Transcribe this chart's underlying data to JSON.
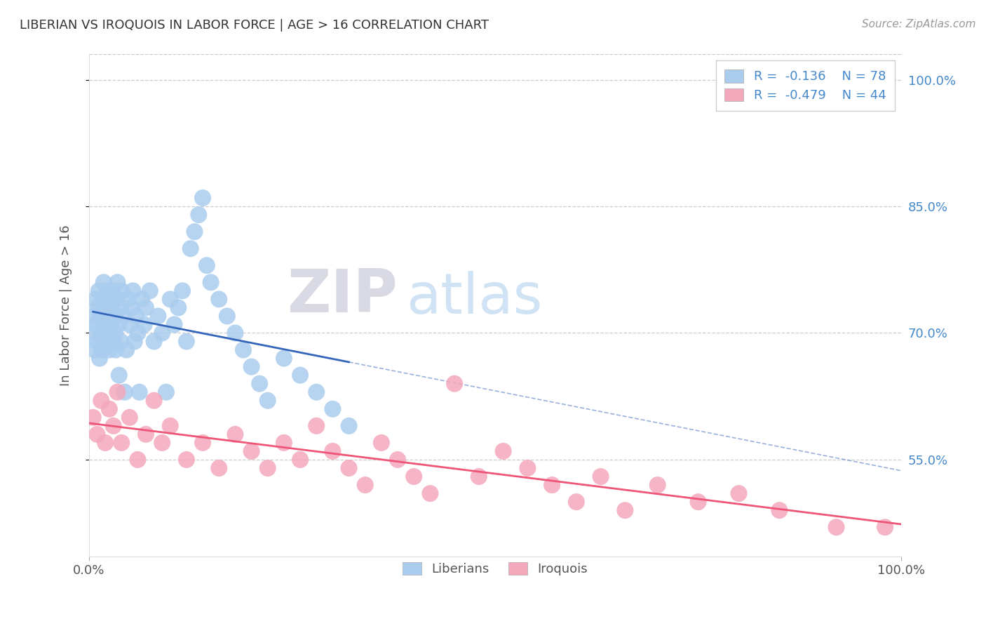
{
  "title": "LIBERIAN VS IROQUOIS IN LABOR FORCE | AGE > 16 CORRELATION CHART",
  "source_text": "Source: ZipAtlas.com",
  "ylabel": "In Labor Force | Age > 16",
  "xlim": [
    0.0,
    1.0
  ],
  "ylim": [
    0.435,
    1.03
  ],
  "right_ytick_labels": [
    "55.0%",
    "70.0%",
    "85.0%",
    "100.0%"
  ],
  "right_ytick_values": [
    0.55,
    0.7,
    0.85,
    1.0
  ],
  "liberian_color": "#aaccee",
  "iroquois_color": "#f4a8bc",
  "liberian_line_color": "#3366bb",
  "iroquois_line_color": "#ee5577",
  "dashed_line_color": "#aabbdd",
  "legend_r_liberian": "R =  -0.136",
  "legend_n_liberian": "N = 78",
  "legend_r_iroquois": "R =  -0.479",
  "legend_n_iroquois": "N = 44",
  "background_color": "#ffffff",
  "grid_color": "#cccccc",
  "liberian_N": 78,
  "iroquois_N": 44,
  "liberian_x_pts": [
    0.005,
    0.006,
    0.007,
    0.008,
    0.009,
    0.01,
    0.011,
    0.012,
    0.013,
    0.014,
    0.015,
    0.016,
    0.017,
    0.018,
    0.019,
    0.02,
    0.021,
    0.022,
    0.023,
    0.024,
    0.025,
    0.026,
    0.027,
    0.028,
    0.029,
    0.03,
    0.031,
    0.032,
    0.033,
    0.034,
    0.035,
    0.036,
    0.037,
    0.038,
    0.039,
    0.04,
    0.042,
    0.044,
    0.046,
    0.048,
    0.05,
    0.052,
    0.054,
    0.056,
    0.058,
    0.06,
    0.062,
    0.065,
    0.068,
    0.07,
    0.075,
    0.08,
    0.085,
    0.09,
    0.095,
    0.1,
    0.105,
    0.11,
    0.115,
    0.12,
    0.125,
    0.13,
    0.135,
    0.14,
    0.145,
    0.15,
    0.16,
    0.17,
    0.18,
    0.19,
    0.2,
    0.21,
    0.22,
    0.24,
    0.26,
    0.28,
    0.3,
    0.32
  ],
  "liberian_y_pts": [
    0.7,
    0.72,
    0.68,
    0.74,
    0.71,
    0.69,
    0.73,
    0.75,
    0.67,
    0.72,
    0.7,
    0.68,
    0.74,
    0.76,
    0.71,
    0.73,
    0.69,
    0.75,
    0.72,
    0.7,
    0.68,
    0.74,
    0.71,
    0.73,
    0.75,
    0.69,
    0.72,
    0.7,
    0.68,
    0.74,
    0.76,
    0.71,
    0.65,
    0.73,
    0.69,
    0.75,
    0.72,
    0.63,
    0.68,
    0.74,
    0.71,
    0.73,
    0.75,
    0.69,
    0.72,
    0.7,
    0.63,
    0.74,
    0.71,
    0.73,
    0.75,
    0.69,
    0.72,
    0.7,
    0.63,
    0.74,
    0.71,
    0.73,
    0.75,
    0.69,
    0.8,
    0.82,
    0.84,
    0.86,
    0.78,
    0.76,
    0.74,
    0.72,
    0.7,
    0.68,
    0.66,
    0.64,
    0.62,
    0.67,
    0.65,
    0.63,
    0.61,
    0.59
  ],
  "iroquois_x_pts": [
    0.005,
    0.01,
    0.015,
    0.02,
    0.025,
    0.03,
    0.035,
    0.04,
    0.05,
    0.06,
    0.07,
    0.08,
    0.09,
    0.1,
    0.12,
    0.14,
    0.16,
    0.18,
    0.2,
    0.22,
    0.24,
    0.26,
    0.28,
    0.3,
    0.32,
    0.34,
    0.36,
    0.38,
    0.4,
    0.42,
    0.45,
    0.48,
    0.51,
    0.54,
    0.57,
    0.6,
    0.63,
    0.66,
    0.7,
    0.75,
    0.8,
    0.85,
    0.92,
    0.98
  ],
  "iroquois_y_pts": [
    0.6,
    0.58,
    0.62,
    0.57,
    0.61,
    0.59,
    0.63,
    0.57,
    0.6,
    0.55,
    0.58,
    0.62,
    0.57,
    0.59,
    0.55,
    0.57,
    0.54,
    0.58,
    0.56,
    0.54,
    0.57,
    0.55,
    0.59,
    0.56,
    0.54,
    0.52,
    0.57,
    0.55,
    0.53,
    0.51,
    0.64,
    0.53,
    0.56,
    0.54,
    0.52,
    0.5,
    0.53,
    0.49,
    0.52,
    0.5,
    0.51,
    0.49,
    0.47,
    0.47
  ]
}
